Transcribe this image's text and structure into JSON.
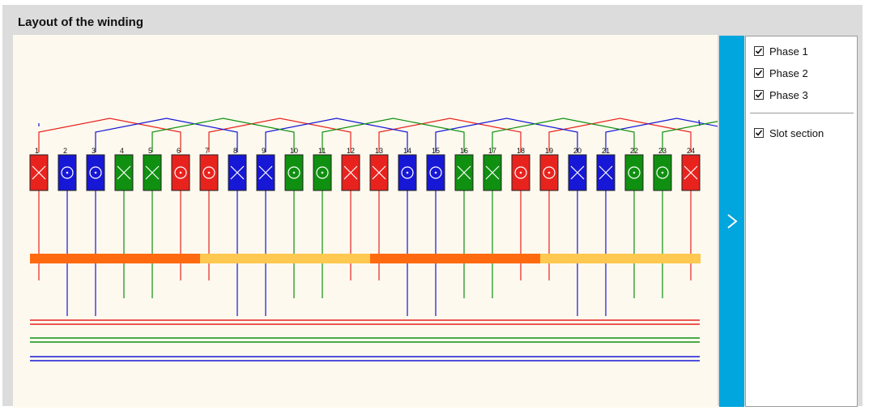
{
  "header": {
    "title": "Layout of the winding"
  },
  "options": [
    {
      "label": "Phase 1",
      "checked": true
    },
    {
      "label": "Phase 2",
      "checked": true
    },
    {
      "label": "Phase 3",
      "checked": true
    },
    {
      "label": "Slot section",
      "checked": true
    }
  ],
  "toggle": {
    "icon": "chevron-right-icon"
  },
  "colors": {
    "phase1": "#e8231e",
    "phase2": "#1717d6",
    "phase3": "#109010",
    "pole_dark": "#ff6a10",
    "pole_light": "#ffc850",
    "panel_accent": "#00a6dd"
  },
  "slots": [
    {
      "n": "1",
      "phase": 1,
      "dir": "x"
    },
    {
      "n": "2",
      "phase": 2,
      "dir": "o"
    },
    {
      "n": "3",
      "phase": 2,
      "dir": "o"
    },
    {
      "n": "4",
      "phase": 3,
      "dir": "x"
    },
    {
      "n": "5",
      "phase": 3,
      "dir": "x"
    },
    {
      "n": "6",
      "phase": 1,
      "dir": "o"
    },
    {
      "n": "7",
      "phase": 1,
      "dir": "o"
    },
    {
      "n": "8",
      "phase": 2,
      "dir": "x"
    },
    {
      "n": "9",
      "phase": 2,
      "dir": "x"
    },
    {
      "n": "10",
      "phase": 3,
      "dir": "o"
    },
    {
      "n": "11",
      "phase": 3,
      "dir": "o"
    },
    {
      "n": "12",
      "phase": 1,
      "dir": "x"
    },
    {
      "n": "13",
      "phase": 1,
      "dir": "x"
    },
    {
      "n": "14",
      "phase": 2,
      "dir": "o"
    },
    {
      "n": "15",
      "phase": 2,
      "dir": "o"
    },
    {
      "n": "16",
      "phase": 3,
      "dir": "x"
    },
    {
      "n": "17",
      "phase": 3,
      "dir": "x"
    },
    {
      "n": "18",
      "phase": 1,
      "dir": "o"
    },
    {
      "n": "19",
      "phase": 1,
      "dir": "o"
    },
    {
      "n": "20",
      "phase": 2,
      "dir": "x"
    },
    {
      "n": "21",
      "phase": 2,
      "dir": "x"
    },
    {
      "n": "22",
      "phase": 3,
      "dir": "o"
    },
    {
      "n": "23",
      "phase": 3,
      "dir": "o"
    },
    {
      "n": "24",
      "phase": 1,
      "dir": "x"
    }
  ]
}
